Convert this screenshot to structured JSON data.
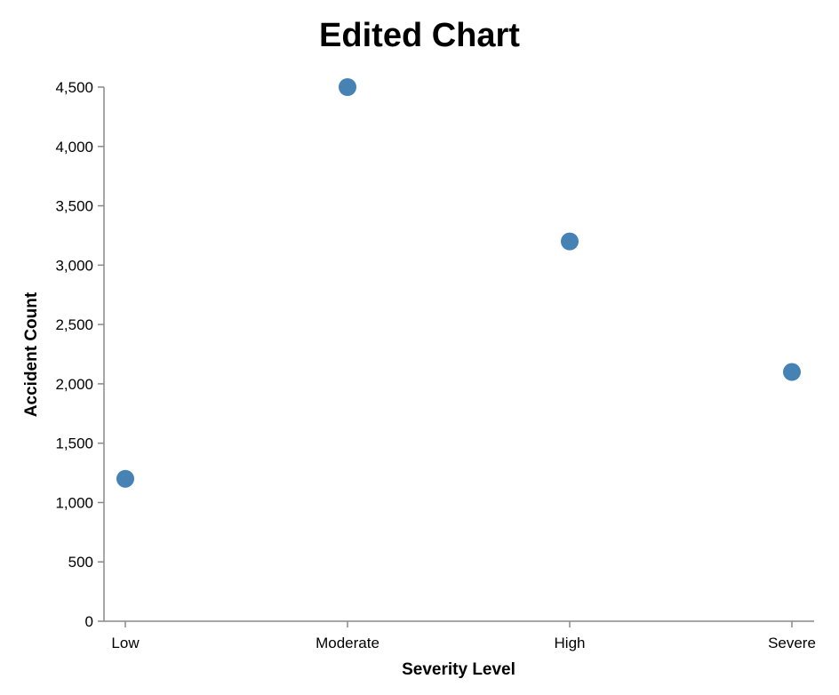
{
  "chart_data": {
    "type": "scatter",
    "title": "Edited Chart",
    "xlabel": "Severity Level",
    "ylabel": "Accident Count",
    "categories": [
      "Low",
      "Moderate",
      "High",
      "Severe"
    ],
    "values": [
      1200,
      4500,
      3200,
      2100
    ],
    "ylim": [
      0,
      4500
    ],
    "yticks": [
      0,
      500,
      1000,
      1500,
      2000,
      2500,
      3000,
      3500,
      4000,
      4500
    ],
    "ytick_labels": [
      "0",
      "500",
      "1,000",
      "1,500",
      "2,000",
      "2,500",
      "3,000",
      "3,500",
      "4,000",
      "4,500"
    ],
    "grid": false,
    "point_color": "#4682b4"
  }
}
